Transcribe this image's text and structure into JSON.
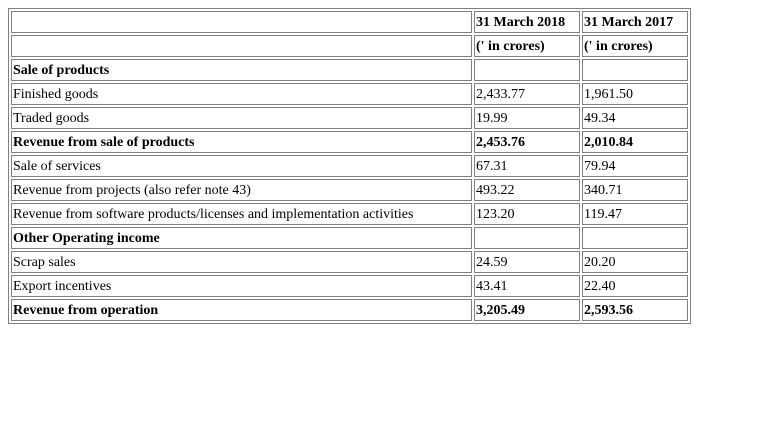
{
  "table": {
    "header_row1": {
      "label": "",
      "col1": "31 March 2018",
      "col2": "31 March 2017"
    },
    "header_row2": {
      "label": "",
      "col1": "(' in crores)",
      "col2": "(' in crores)"
    },
    "rows": [
      {
        "label": "Sale of products",
        "v2018": "",
        "v2017": "",
        "bold": true
      },
      {
        "label": "Finished goods",
        "v2018": "2,433.77",
        "v2017": "1,961.50",
        "bold": false
      },
      {
        "label": "Traded goods",
        "v2018": "19.99",
        "v2017": "49.34",
        "bold": false
      },
      {
        "label": "Revenue from sale of products",
        "v2018": "2,453.76",
        "v2017": "2,010.84",
        "bold": true
      },
      {
        "label": "Sale of services",
        "v2018": "67.31",
        "v2017": "79.94",
        "bold": false
      },
      {
        "label": "Revenue from projects (also refer note 43)",
        "v2018": "493.22",
        "v2017": "340.71",
        "bold": false
      },
      {
        "label": "Revenue from software products/licenses and implementation activities",
        "v2018": "123.20",
        "v2017": "119.47",
        "bold": false
      },
      {
        "label": "Other Operating income",
        "v2018": "",
        "v2017": "",
        "bold": true
      },
      {
        "label": "Scrap sales",
        "v2018": "24.59",
        "v2017": "20.20",
        "bold": false
      },
      {
        "label": "Export incentives",
        "v2018": "43.41",
        "v2017": "22.40",
        "bold": false
      },
      {
        "label": "Revenue from operation",
        "v2018": "3,205.49",
        "v2017": "2,593.56",
        "bold": true
      }
    ]
  }
}
